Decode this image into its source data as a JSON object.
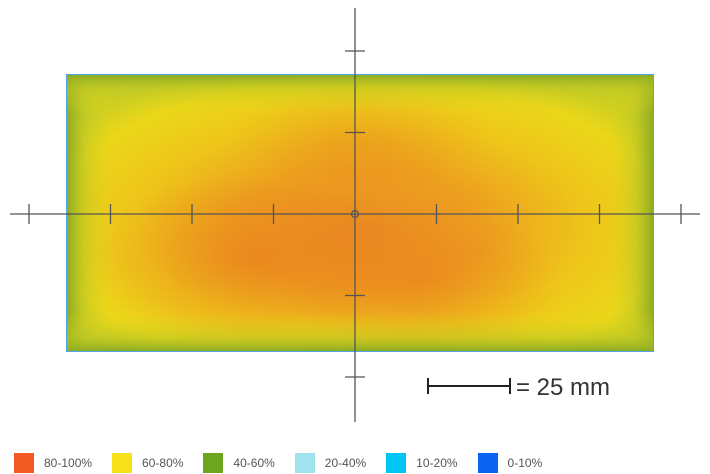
{
  "chart_data": {
    "type": "heatmap",
    "description_label": "",
    "scale_bar": {
      "label": "= 25 mm",
      "length_mm": 25
    },
    "legend": [
      {
        "label": "80-100%",
        "color": "#f15a22"
      },
      {
        "label": "60-80%",
        "color": "#f7e11b"
      },
      {
        "label": "40-60%",
        "color": "#6ea51e"
      },
      {
        "label": "20-40%",
        "color": "#9fe3ef"
      },
      {
        "label": "10-20%",
        "color": "#00c6f4"
      },
      {
        "label": "0-10%",
        "color": "#0a64f0"
      }
    ],
    "ticks": {
      "x_count": 8,
      "y_count": 4
    },
    "field": {
      "edge_color": "#6ea51e",
      "mid_color": "#f7e11b",
      "core_color": "#f15a22",
      "outline_color": "#4fa6e8"
    }
  }
}
